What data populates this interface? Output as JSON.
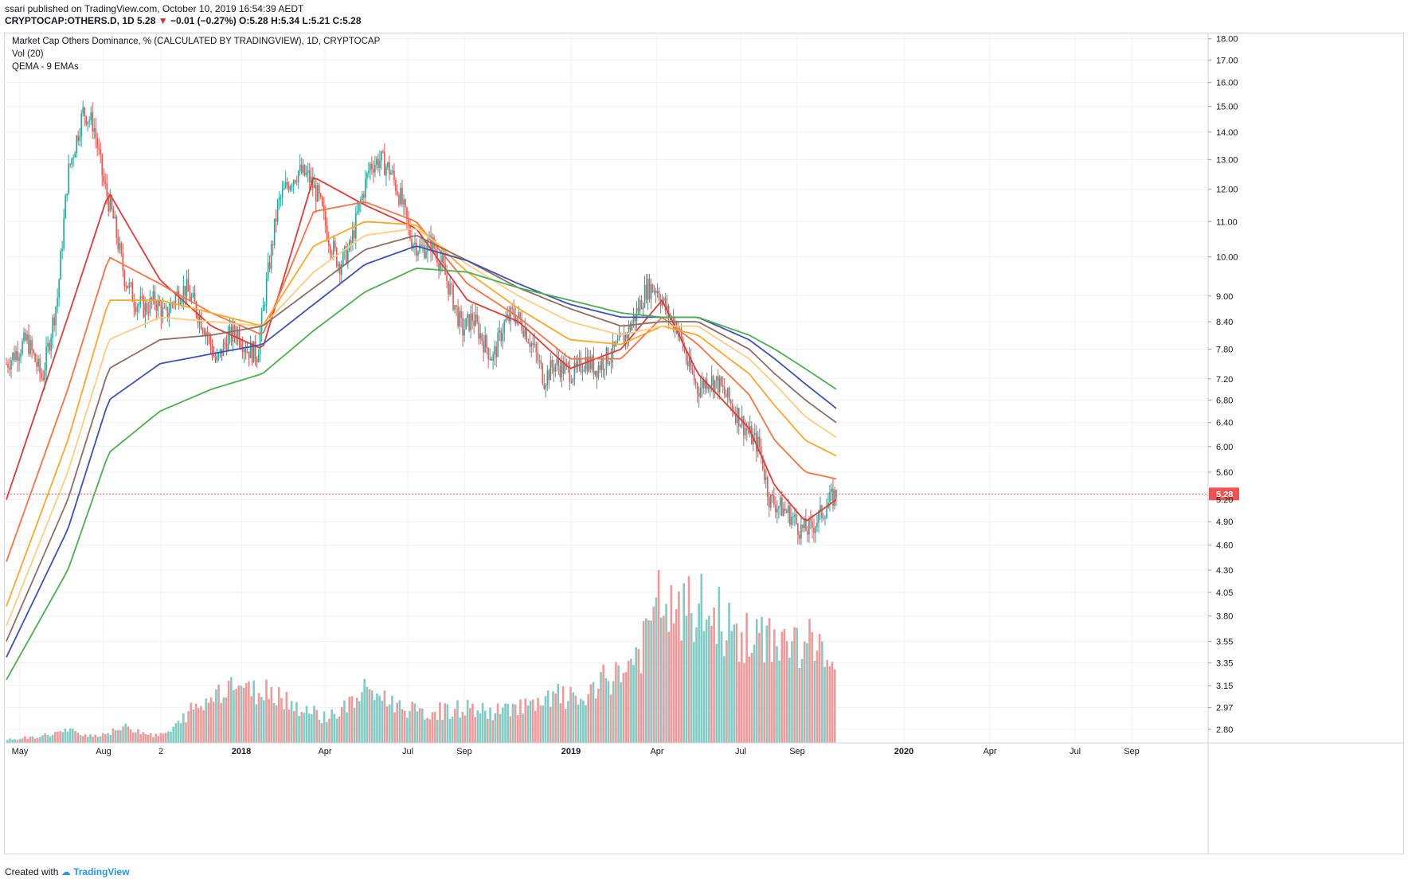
{
  "header": {
    "publisher": "ssari published on TradingView.com, October 10, 2019 16:54:39 AEDT",
    "symbol": "CRYPTOCAP:OTHERS.D, 1D",
    "last": "5.28",
    "change_arrow": "▼",
    "change": "−0.01 (−0.27%)",
    "open": "O:5.28",
    "high": "H:5.34",
    "low": "L:5.21",
    "close": "C:5.28"
  },
  "legend": {
    "title": "Market Cap Others Dominance, % (CALCULATED BY TRADINGVIEW), 1D, CRYPTOCAP",
    "vol": "Vol (20)",
    "qema": "QEMA - 9 EMAs"
  },
  "footer": {
    "created_with": "Created with",
    "brand": "TradingView"
  },
  "colors": {
    "up": "#26a69a",
    "down": "#ef5350",
    "vol_up": "#80cbc4",
    "vol_down": "#ef9a9a",
    "ema": [
      "#e53935",
      "#ff7043",
      "#ffa726",
      "#ffcc80",
      "#8d6e63",
      "#3f51b5",
      "#4caf50",
      "#6d4c41",
      "#c62828"
    ],
    "grid": "#eef0f3",
    "price_line": "#ef5350",
    "price_label_bg": "#ef5350"
  },
  "chart_data": {
    "type": "candlestick",
    "title": "Market Cap Others Dominance, % (CALCULATED BY TRADINGVIEW), 1D, CRYPTOCAP",
    "y_scale": "log",
    "ylim": [
      2.7,
      18.3
    ],
    "price_ticks": [
      "18.00",
      "17.00",
      "16.00",
      "15.00",
      "14.00",
      "13.00",
      "12.00",
      "11.00",
      "10.00",
      "9.00",
      "8.40",
      "7.80",
      "7.20",
      "6.80",
      "6.40",
      "6.00",
      "5.60",
      "5.20",
      "4.90",
      "4.60",
      "4.30",
      "4.05",
      "3.80",
      "3.55",
      "3.35",
      "3.15",
      "2.97",
      "2.80"
    ],
    "x_ticks": [
      "May",
      "Aug",
      "2",
      "2018",
      "Apr",
      "Jul",
      "Sep",
      "2019",
      "Apr",
      "Jul",
      "Sep",
      "2020",
      "Apr",
      "Jul",
      "Sep"
    ],
    "x_ticks_bold": [
      "2018",
      "2019",
      "2020"
    ],
    "current_price": "5.28",
    "price_path": [
      [
        0,
        7.5
      ],
      [
        4,
        8.0
      ],
      [
        7,
        7.2
      ],
      [
        10,
        9.0
      ],
      [
        12,
        12.5
      ],
      [
        15,
        14.8
      ],
      [
        17,
        14.3
      ],
      [
        19,
        12.2
      ],
      [
        21,
        11.0
      ],
      [
        23,
        9.5
      ],
      [
        25,
        8.9
      ],
      [
        27,
        8.7
      ],
      [
        29,
        8.9
      ],
      [
        31,
        8.5
      ],
      [
        33,
        9.0
      ],
      [
        35,
        9.2
      ],
      [
        37,
        8.7
      ],
      [
        39,
        8.2
      ],
      [
        41,
        7.5
      ],
      [
        43,
        8.0
      ],
      [
        45,
        8.2
      ],
      [
        47,
        7.8
      ],
      [
        49,
        7.7
      ],
      [
        51,
        9.5
      ],
      [
        53,
        11.5
      ],
      [
        55,
        12.2
      ],
      [
        57,
        12.6
      ],
      [
        59,
        12.4
      ],
      [
        61,
        11.7
      ],
      [
        63,
        10.5
      ],
      [
        65,
        9.8
      ],
      [
        67,
        10.2
      ],
      [
        69,
        11.5
      ],
      [
        71,
        12.8
      ],
      [
        73,
        13.0
      ],
      [
        75,
        12.6
      ],
      [
        77,
        11.7
      ],
      [
        79,
        10.5
      ],
      [
        81,
        10.2
      ],
      [
        83,
        10.4
      ],
      [
        85,
        9.8
      ],
      [
        87,
        9.0
      ],
      [
        89,
        8.2
      ],
      [
        91,
        8.5
      ],
      [
        93,
        8.0
      ],
      [
        95,
        7.6
      ],
      [
        97,
        8.3
      ],
      [
        99,
        8.6
      ],
      [
        101,
        8.3
      ],
      [
        103,
        7.8
      ],
      [
        105,
        7.2
      ],
      [
        107,
        7.5
      ],
      [
        109,
        7.4
      ],
      [
        111,
        7.3
      ],
      [
        113,
        7.6
      ],
      [
        115,
        7.4
      ],
      [
        117,
        7.6
      ],
      [
        119,
        7.8
      ],
      [
        121,
        8.1
      ],
      [
        123,
        8.6
      ],
      [
        125,
        9.2
      ],
      [
        127,
        9.2
      ],
      [
        129,
        8.6
      ],
      [
        131,
        8.3
      ],
      [
        133,
        7.5
      ],
      [
        135,
        7.0
      ],
      [
        137,
        7.2
      ],
      [
        139,
        7.1
      ],
      [
        141,
        6.8
      ],
      [
        143,
        6.5
      ],
      [
        145,
        6.2
      ],
      [
        147,
        6.0
      ],
      [
        149,
        5.2
      ],
      [
        151,
        5.1
      ],
      [
        153,
        5.0
      ],
      [
        155,
        4.8
      ],
      [
        157,
        4.8
      ],
      [
        159,
        5.0
      ],
      [
        161,
        5.2
      ],
      [
        162,
        5.28
      ]
    ],
    "x_to_date": {
      "start": "2017-05",
      "end": "2019-10-10"
    },
    "emas": [
      {
        "name": "EMA1",
        "points": [
          [
            0,
            5.2
          ],
          [
            12,
            8.5
          ],
          [
            20,
            11.9
          ],
          [
            30,
            9.4
          ],
          [
            40,
            8.3
          ],
          [
            50,
            7.8
          ],
          [
            60,
            12.4
          ],
          [
            70,
            11.5
          ],
          [
            80,
            10.8
          ],
          [
            90,
            8.9
          ],
          [
            100,
            8.4
          ],
          [
            110,
            7.4
          ],
          [
            120,
            7.8
          ],
          [
            128,
            8.9
          ],
          [
            135,
            7.3
          ],
          [
            145,
            6.3
          ],
          [
            150,
            5.4
          ],
          [
            156,
            4.9
          ],
          [
            162,
            5.2
          ]
        ]
      },
      {
        "name": "EMA2",
        "points": [
          [
            0,
            4.4
          ],
          [
            12,
            7.0
          ],
          [
            20,
            10.0
          ],
          [
            30,
            9.3
          ],
          [
            40,
            8.6
          ],
          [
            50,
            8.1
          ],
          [
            60,
            11.3
          ],
          [
            70,
            11.6
          ],
          [
            80,
            11.0
          ],
          [
            90,
            9.3
          ],
          [
            100,
            8.5
          ],
          [
            110,
            7.6
          ],
          [
            120,
            7.6
          ],
          [
            128,
            8.5
          ],
          [
            135,
            7.9
          ],
          [
            145,
            6.9
          ],
          [
            150,
            6.1
          ],
          [
            156,
            5.6
          ],
          [
            162,
            5.5
          ]
        ]
      },
      {
        "name": "EMA3",
        "points": [
          [
            0,
            3.9
          ],
          [
            12,
            6.1
          ],
          [
            20,
            8.9
          ],
          [
            30,
            8.9
          ],
          [
            40,
            8.6
          ],
          [
            50,
            8.3
          ],
          [
            60,
            10.3
          ],
          [
            70,
            11.0
          ],
          [
            80,
            10.9
          ],
          [
            90,
            9.6
          ],
          [
            100,
            8.7
          ],
          [
            110,
            8.0
          ],
          [
            120,
            7.9
          ],
          [
            128,
            8.3
          ],
          [
            135,
            8.1
          ],
          [
            145,
            7.3
          ],
          [
            150,
            6.7
          ],
          [
            156,
            6.1
          ],
          [
            162,
            5.85
          ]
        ]
      },
      {
        "name": "EMA4",
        "points": [
          [
            0,
            3.7
          ],
          [
            12,
            5.6
          ],
          [
            20,
            8.0
          ],
          [
            30,
            8.5
          ],
          [
            40,
            8.4
          ],
          [
            50,
            8.3
          ],
          [
            60,
            9.6
          ],
          [
            70,
            10.6
          ],
          [
            80,
            10.8
          ],
          [
            90,
            9.8
          ],
          [
            100,
            9.0
          ],
          [
            110,
            8.4
          ],
          [
            120,
            8.1
          ],
          [
            128,
            8.3
          ],
          [
            135,
            8.3
          ],
          [
            145,
            7.6
          ],
          [
            150,
            7.1
          ],
          [
            156,
            6.5
          ],
          [
            162,
            6.15
          ]
        ]
      },
      {
        "name": "EMA5",
        "points": [
          [
            0,
            3.55
          ],
          [
            12,
            5.2
          ],
          [
            20,
            7.4
          ],
          [
            30,
            8.0
          ],
          [
            40,
            8.1
          ],
          [
            50,
            8.3
          ],
          [
            60,
            9.2
          ],
          [
            70,
            10.2
          ],
          [
            80,
            10.6
          ],
          [
            90,
            9.9
          ],
          [
            100,
            9.2
          ],
          [
            110,
            8.7
          ],
          [
            120,
            8.3
          ],
          [
            128,
            8.4
          ],
          [
            135,
            8.4
          ],
          [
            145,
            7.8
          ],
          [
            150,
            7.3
          ],
          [
            156,
            6.8
          ],
          [
            162,
            6.4
          ]
        ]
      },
      {
        "name": "EMA6",
        "points": [
          [
            0,
            3.4
          ],
          [
            12,
            4.8
          ],
          [
            20,
            6.8
          ],
          [
            30,
            7.5
          ],
          [
            40,
            7.7
          ],
          [
            50,
            7.9
          ],
          [
            60,
            8.8
          ],
          [
            70,
            9.8
          ],
          [
            80,
            10.3
          ],
          [
            90,
            9.9
          ],
          [
            100,
            9.3
          ],
          [
            110,
            8.8
          ],
          [
            120,
            8.5
          ],
          [
            128,
            8.5
          ],
          [
            135,
            8.5
          ],
          [
            145,
            8.0
          ],
          [
            150,
            7.6
          ],
          [
            156,
            7.1
          ],
          [
            162,
            6.65
          ]
        ]
      },
      {
        "name": "EMA7",
        "points": [
          [
            0,
            3.2
          ],
          [
            12,
            4.3
          ],
          [
            20,
            5.9
          ],
          [
            30,
            6.6
          ],
          [
            40,
            7.0
          ],
          [
            50,
            7.3
          ],
          [
            60,
            8.2
          ],
          [
            70,
            9.1
          ],
          [
            80,
            9.7
          ],
          [
            90,
            9.6
          ],
          [
            100,
            9.2
          ],
          [
            110,
            8.9
          ],
          [
            120,
            8.6
          ],
          [
            128,
            8.5
          ],
          [
            135,
            8.5
          ],
          [
            145,
            8.1
          ],
          [
            150,
            7.8
          ],
          [
            156,
            7.4
          ],
          [
            162,
            7.0
          ]
        ]
      }
    ],
    "volume": {
      "ylim": [
        0,
        1.0
      ],
      "values": [
        0.02,
        0.02,
        0.03,
        0.03,
        0.04,
        0.05,
        0.06,
        0.07,
        0.06,
        0.05,
        0.04,
        0.05,
        0.06,
        0.08,
        0.09,
        0.07,
        0.06,
        0.04,
        0.05,
        0.07,
        0.12,
        0.18,
        0.2,
        0.22,
        0.3,
        0.32,
        0.34,
        0.34,
        0.28,
        0.3,
        0.3,
        0.3,
        0.26,
        0.22,
        0.2,
        0.18,
        0.16,
        0.15,
        0.17,
        0.2,
        0.23,
        0.28,
        0.3,
        0.27,
        0.24,
        0.22,
        0.2,
        0.18,
        0.16,
        0.17,
        0.18,
        0.18,
        0.19,
        0.2,
        0.19,
        0.18,
        0.17,
        0.18,
        0.2,
        0.22,
        0.21,
        0.2,
        0.22,
        0.25,
        0.27,
        0.25,
        0.24,
        0.26,
        0.28,
        0.35,
        0.38,
        0.4,
        0.45,
        0.5,
        0.6,
        0.75,
        0.82,
        0.7,
        0.72,
        0.75,
        0.78,
        0.7,
        0.72,
        0.68,
        0.6,
        0.6,
        0.58,
        0.55,
        0.6,
        0.62,
        0.55,
        0.55,
        0.58,
        0.55,
        0.5,
        0.55,
        0.5
      ]
    }
  }
}
